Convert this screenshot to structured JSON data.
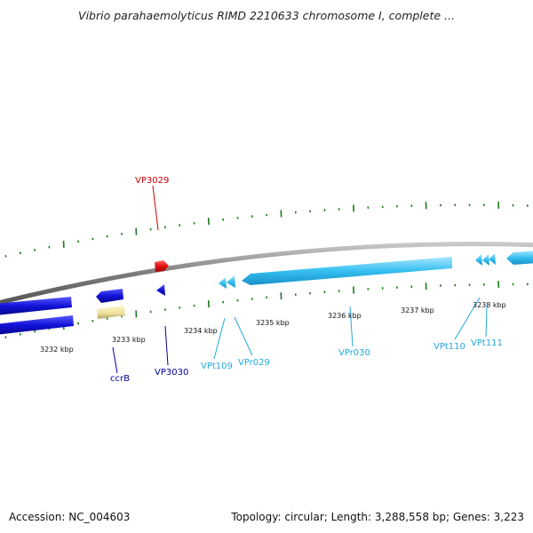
{
  "title": "Vibrio parahaemolyticus RIMD 2210633 chromosome I, complete ...",
  "footer": {
    "accession": "Accession: NC_004603",
    "topology": "Topology: circular; Length: 3,288,558 bp; Genes: 3,223"
  },
  "ticks": {
    "kbp_3232": "3232 kbp",
    "kbp_3233": "3233 kbp",
    "kbp_3234": "3234 kbp",
    "kbp_3235": "3235 kbp",
    "kbp_3236": "3236 kbp",
    "kbp_3237": "3237 kbp",
    "kbp_3238": "3238 kbp"
  },
  "genes": {
    "vp3029": "VP3029",
    "vp3030": "VP3030",
    "ccrb": "ccrB",
    "vpt109": "VPt109",
    "vpr029": "VPr029",
    "vpr030": "VPr030",
    "vpt110": "VPt110",
    "vpt111": "VPt111"
  },
  "colors": {
    "backbone": "#8a8a8a",
    "tick": "#1a7a1a",
    "red_gene": "#e01010",
    "blue_gene": "#1010d0",
    "cyan_gene": "#30b8ee",
    "yellow_gene": "#eee0a0",
    "red_label": "#cc0000",
    "blue_label": "#000099",
    "cyan_label": "#22aadd"
  }
}
